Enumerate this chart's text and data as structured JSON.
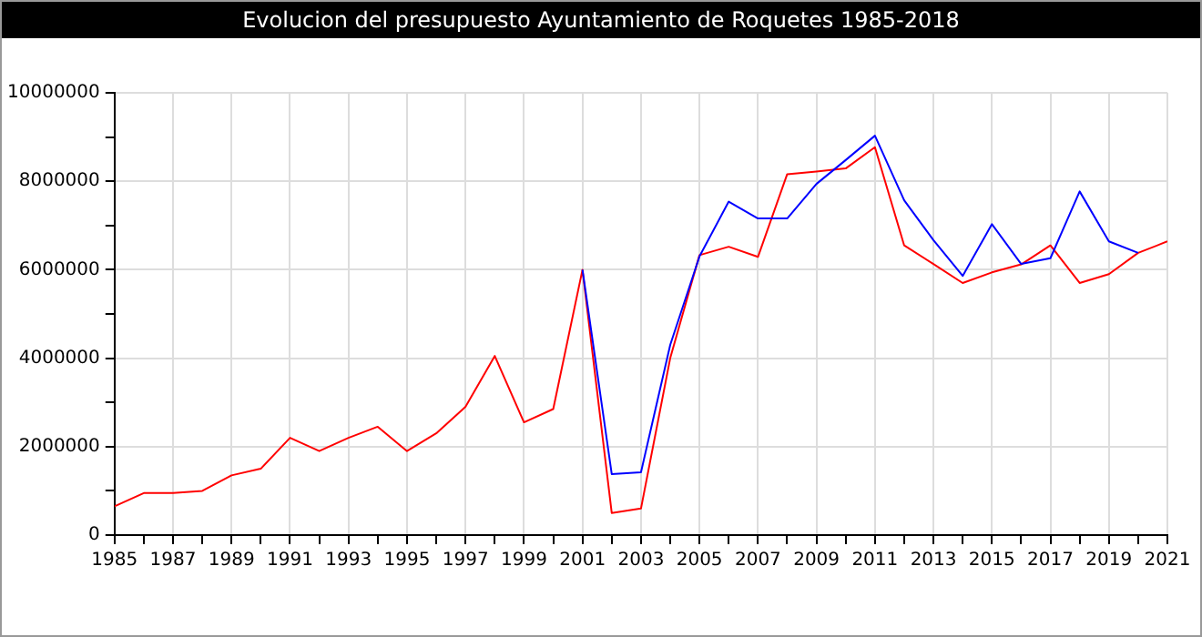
{
  "chart_data": {
    "type": "line",
    "title": "Evolucion del presupuesto Ayuntamiento de Roquetes 1985-2018",
    "x": [
      1985,
      1986,
      1987,
      1988,
      1989,
      1990,
      1991,
      1992,
      1993,
      1994,
      1995,
      1996,
      1997,
      1998,
      1999,
      2000,
      2001,
      2002,
      2003,
      2004,
      2005,
      2006,
      2007,
      2008,
      2009,
      2010,
      2011,
      2012,
      2013,
      2014,
      2015,
      2016,
      2017,
      2018,
      2019,
      2020,
      2021
    ],
    "series": [
      {
        "color": "#0000ff",
        "values": [
          null,
          null,
          null,
          null,
          null,
          null,
          null,
          null,
          null,
          null,
          null,
          null,
          null,
          null,
          null,
          null,
          6000000,
          1380000,
          1420000,
          4300000,
          6300000,
          7540000,
          7160000,
          7160000,
          7940000,
          8480000,
          9030000,
          7570000,
          6670000,
          5860000,
          7030000,
          6130000,
          6260000,
          7770000,
          6640000,
          6380000,
          null
        ]
      },
      {
        "color": "#ff0000",
        "values": [
          650000,
          950000,
          950000,
          1000000,
          1350000,
          1500000,
          2200000,
          1900000,
          2200000,
          2450000,
          1900000,
          2300000,
          2900000,
          4050000,
          2550000,
          2850000,
          6000000,
          500000,
          600000,
          4000000,
          6330000,
          6520000,
          6290000,
          8160000,
          8220000,
          8290000,
          8770000,
          6550000,
          6130000,
          5700000,
          5940000,
          6120000,
          6550000,
          5700000,
          5900000,
          6380000,
          6640000
        ]
      }
    ],
    "xlim": [
      1985,
      2021
    ],
    "xticks": [
      1985,
      {
        "value": 1986,
        "label": null
      },
      1987,
      {
        "value": 1988,
        "label": null
      },
      1989,
      {
        "value": 1990,
        "label": null
      },
      1991,
      {
        "value": 1992,
        "label": null
      },
      1993,
      {
        "value": 1994,
        "label": null
      },
      1995,
      {
        "value": 1996,
        "label": null
      },
      1997,
      {
        "value": 1998,
        "label": null
      },
      1999,
      {
        "value": 2000,
        "label": null
      },
      2001,
      {
        "value": 2002,
        "label": null
      },
      2003,
      {
        "value": 2004,
        "label": null
      },
      2005,
      {
        "value": 2006,
        "label": null
      },
      2007,
      {
        "value": 2008,
        "label": null
      },
      2009,
      {
        "value": 2010,
        "label": null
      },
      2011,
      {
        "value": 2012,
        "label": null
      },
      2013,
      {
        "value": 2014,
        "label": null
      },
      2015,
      {
        "value": 2016,
        "label": null
      },
      2017,
      {
        "value": 2018,
        "label": null
      },
      2019,
      {
        "value": 2020,
        "label": null
      },
      2021
    ],
    "ylim": [
      0,
      10000000
    ],
    "yticks": [
      0,
      {
        "value": 1000000,
        "label": null
      },
      2000000,
      {
        "value": 3000000,
        "label": null
      },
      4000000,
      {
        "value": 5000000,
        "label": null
      },
      6000000,
      {
        "value": 7000000,
        "label": null
      },
      8000000,
      {
        "value": 9000000,
        "label": null
      },
      10000000
    ],
    "grid": true,
    "marker": "none",
    "line_style": "solid"
  }
}
